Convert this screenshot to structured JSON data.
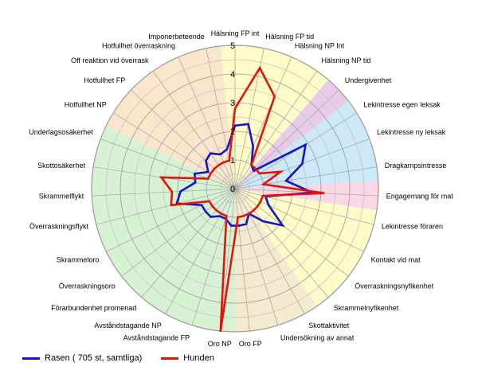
{
  "chart_data": {
    "type": "radar",
    "r_range": [
      0,
      5
    ],
    "r_ticks": [
      "0",
      "1",
      "2",
      "3",
      "4",
      "5"
    ],
    "categories": [
      "Hälsning FP int",
      "Hälsning FP tid",
      "Hälsning NP Int",
      "Hälsning NP tid",
      "Undergivenhet",
      "Lekintresse egen leksak",
      "Lekintresse ny leksak",
      "Dragkampsintresse",
      "Engagemang för mat",
      "Lekintresse föraren",
      "Kontakt vid mat",
      "Överraskningsnyfikenhet",
      "Skrammelnyfikenhet",
      "Skottaktivitet",
      "Undersökning av annat",
      "Oro FP",
      "Oro NP",
      "Avståndstagande FP",
      "Avståndstagande NP",
      "Förarbundenhet promenad",
      "Överraskningsoro",
      "Skrammeloro",
      "Överraskningsflykt",
      "Skrammelflykt",
      "Skottosäkerhet",
      "Underlagsosäkerhet",
      "Hotfullhet NP",
      "Hotfullhet FP",
      "Off reaktion vid överrask",
      "Hotfullhet överraskning",
      "Imponerbeteende"
    ],
    "sectors": [
      {
        "from": 0,
        "to": 3,
        "color": "#fffbc8"
      },
      {
        "from": 4,
        "to": 4,
        "color": "#e8cbe8"
      },
      {
        "from": 5,
        "to": 7,
        "color": "#cce9f7"
      },
      {
        "from": 8,
        "to": 8,
        "color": "#fbd6e6"
      },
      {
        "from": 9,
        "to": 12,
        "color": "#fffbc8"
      },
      {
        "from": 13,
        "to": 15,
        "color": "#f3ead0"
      },
      {
        "from": 16,
        "to": 25,
        "color": "#d6f2d2"
      },
      {
        "from": 26,
        "to": 30,
        "color": "#fbe6cc"
      }
    ],
    "series": [
      {
        "name": "Rasen ( 705 st, samtliga)",
        "color": "#1414c8",
        "values": [
          2.2,
          2.3,
          1.6,
          1.0,
          0.9,
          2.9,
          2.5,
          1.8,
          2.7,
          1.1,
          1.3,
          2.1,
          1.5,
          1.0,
          1.3,
          1.3,
          1.3,
          1.1,
          1.1,
          1.3,
          1.3,
          1.3,
          2.1,
          1.9,
          1.4,
          1.5,
          1.1,
          1.4,
          1.5,
          1.3,
          1.4
        ]
      },
      {
        "name": "Hunden",
        "color": "#e0140a",
        "values": [
          2.8,
          4.3,
          3.5,
          1.0,
          1.0,
          1.0,
          1.7,
          1.0,
          3.1,
          1.0,
          1.0,
          1.0,
          1.0,
          1.0,
          1.0,
          1.0,
          5.0,
          1.0,
          1.0,
          1.0,
          1.0,
          1.0,
          2.3,
          2.2,
          2.6,
          1.0,
          1.0,
          1.0,
          1.0,
          1.0,
          1.0
        ]
      }
    ],
    "title": "",
    "xlabel": "",
    "ylabel": "",
    "legend_position": "bottom-left",
    "grid": true
  }
}
